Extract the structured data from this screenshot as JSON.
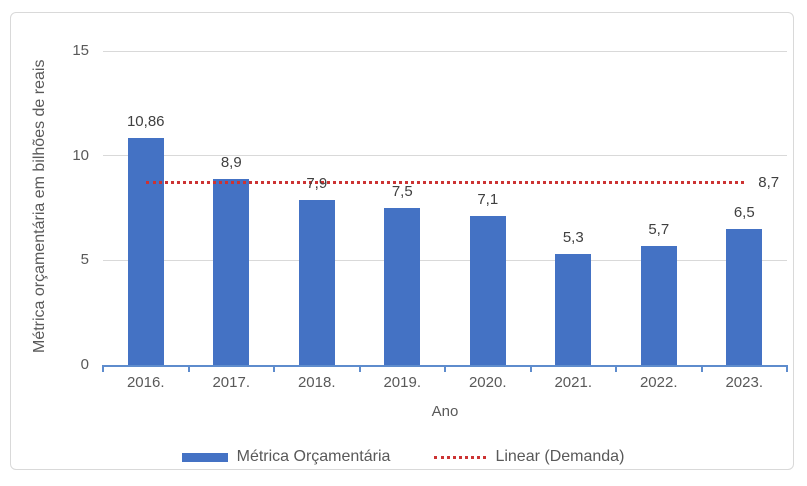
{
  "chart_data": {
    "type": "bar",
    "title": "",
    "xlabel": "Ano",
    "ylabel": "Métrica orçamentária em bilhões de reais",
    "categories": [
      "2016.",
      "2017.",
      "2018.",
      "2019.",
      "2020.",
      "2021.",
      "2022.",
      "2023."
    ],
    "series": [
      {
        "name": "Métrica Orçamentária",
        "values": [
          10.86,
          8.9,
          7.9,
          7.5,
          7.1,
          5.3,
          5.7,
          6.5
        ],
        "value_labels": [
          "10,86",
          "8,9",
          "7,9",
          "7,5",
          "7,1",
          "5,3",
          "5,7",
          "6,5"
        ]
      }
    ],
    "trendline": {
      "name": "Linear (Demanda)",
      "value": 8.7,
      "label": "8,7",
      "style": "dotted"
    },
    "ylim": [
      0,
      15
    ],
    "yticks": [
      0,
      5,
      10,
      15
    ],
    "ytick_labels": [
      "0",
      "5",
      "10",
      "15"
    ],
    "grid": "horizontal",
    "legend_position": "bottom"
  },
  "colors": {
    "bar": "#4472C4",
    "trendline": "#CC3333",
    "gridline": "#D9D9D9",
    "axis_line": "#5E8CCD",
    "tick_text": "#595959",
    "data_label_text": "#404040"
  }
}
